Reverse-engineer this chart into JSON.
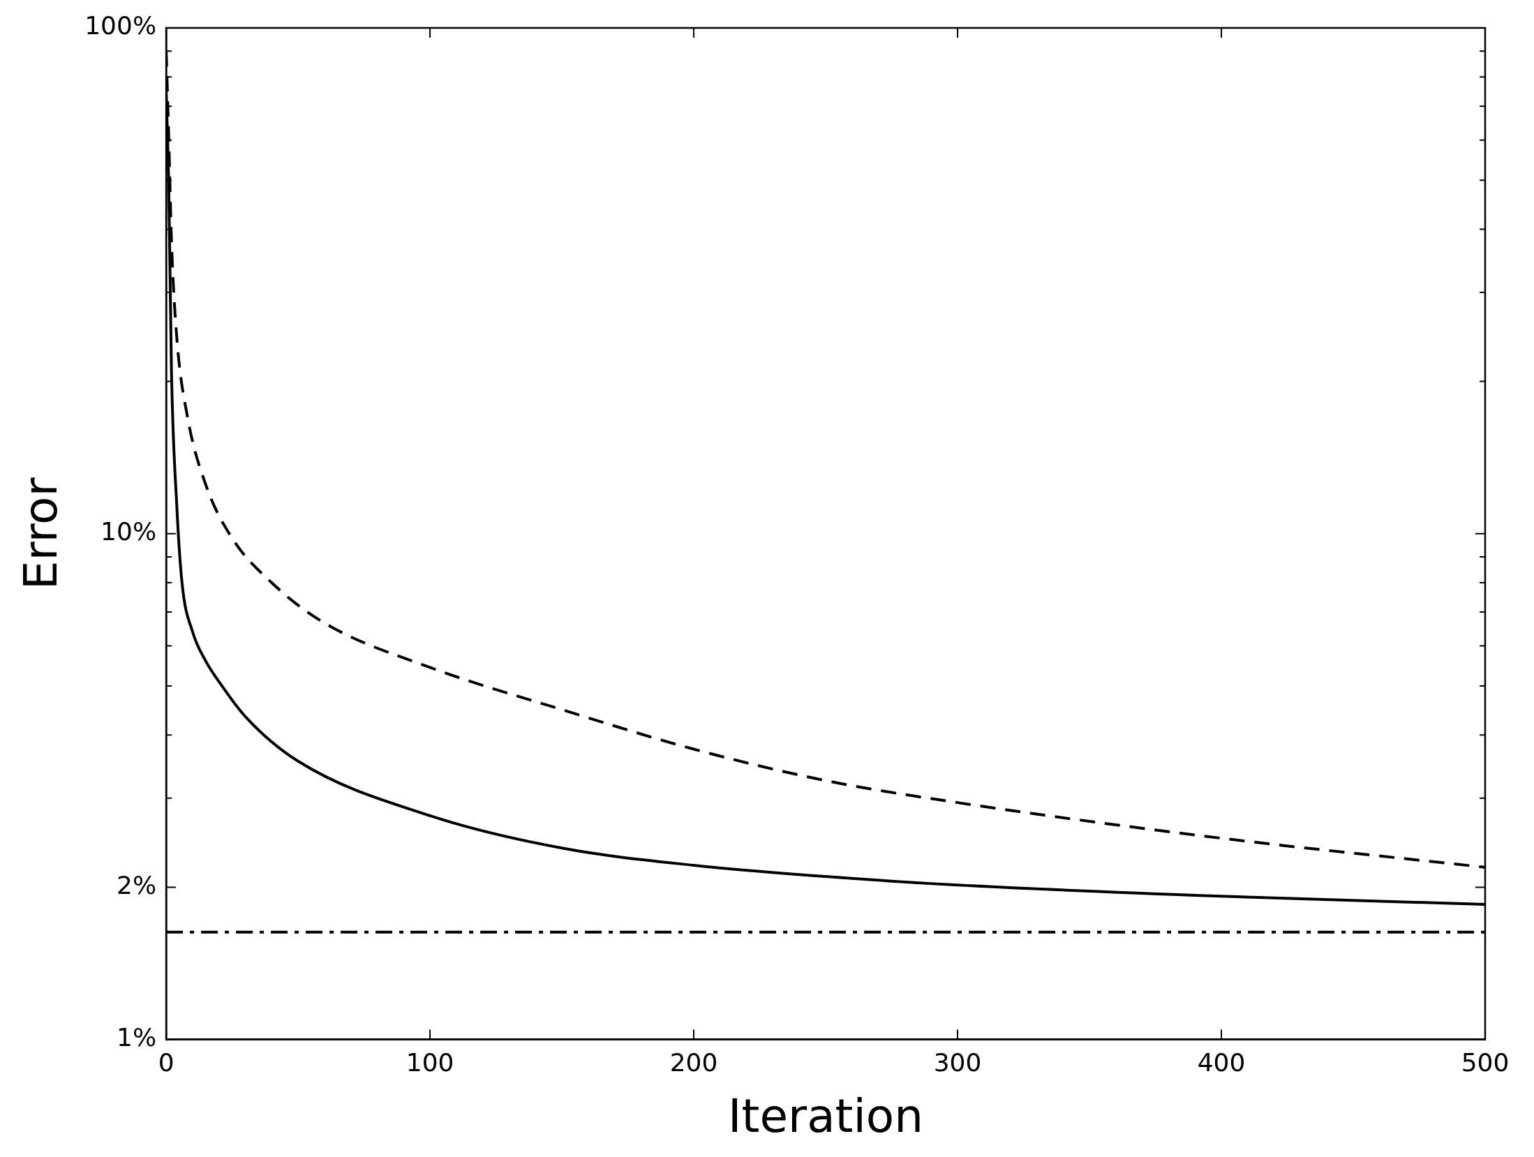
{
  "chart_data": {
    "type": "line",
    "xlabel": "Iteration",
    "ylabel": "Error",
    "log": "y",
    "grid": false,
    "legend": false,
    "marker": "none",
    "xlim": [
      0,
      500
    ],
    "xticks": [
      0,
      100,
      200,
      300,
      400,
      500
    ],
    "ylim": [
      1,
      100
    ],
    "yticks": [
      {
        "value": 1,
        "label": "1%"
      },
      {
        "value": 2,
        "label": "2%"
      },
      {
        "value": 3,
        "label": null
      },
      {
        "value": 4,
        "label": null
      },
      {
        "value": 5,
        "label": null
      },
      {
        "value": 6,
        "label": null
      },
      {
        "value": 7,
        "label": null
      },
      {
        "value": 8,
        "label": null
      },
      {
        "value": 9,
        "label": null
      },
      {
        "value": 10,
        "label": "10%"
      },
      {
        "value": 20,
        "label": null
      },
      {
        "value": 30,
        "label": null
      },
      {
        "value": 40,
        "label": null
      },
      {
        "value": 50,
        "label": null
      },
      {
        "value": 60,
        "label": null
      },
      {
        "value": 70,
        "label": null
      },
      {
        "value": 80,
        "label": null
      },
      {
        "value": 90,
        "label": null
      },
      {
        "value": 100,
        "label": "100%"
      }
    ],
    "series": [
      {
        "color": "#000000",
        "line_style": "solid",
        "x": [
          0,
          1,
          2,
          4,
          6,
          10,
          15,
          20,
          30,
          50,
          100,
          150,
          200,
          250,
          300,
          400,
          500
        ],
        "values": [
          75,
          48,
          21,
          11.4,
          8,
          6.4,
          5.6,
          5.1,
          4.35,
          3.55,
          2.77,
          2.39,
          2.21,
          2.1,
          2.02,
          1.92,
          1.85
        ]
      },
      {
        "color": "#000000",
        "line_style": "dashed",
        "x": [
          0,
          1,
          2,
          4,
          8,
          15,
          25,
          40,
          60,
          100,
          150,
          200,
          250,
          300,
          400,
          500
        ],
        "values": [
          90,
          60,
          38,
          24.5,
          17.1,
          12.5,
          9.8,
          8,
          6.66,
          5.44,
          4.49,
          3.75,
          3.25,
          2.94,
          2.5,
          2.19
        ]
      }
    ],
    "ref_lines": [
      {
        "axis": "y",
        "value": 1.63,
        "color": "#000000",
        "line_style": "dashdot"
      }
    ]
  }
}
